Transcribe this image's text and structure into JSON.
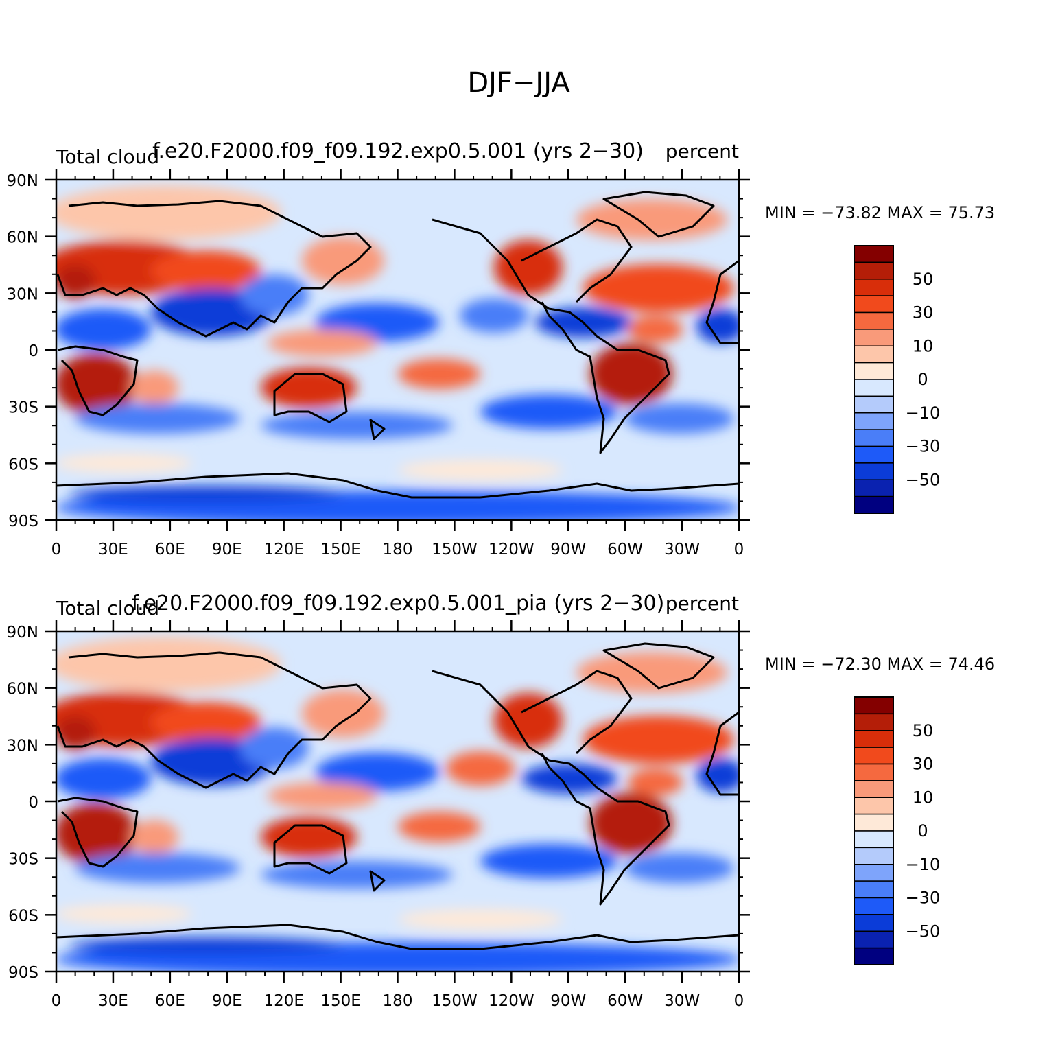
{
  "page_title": "DJF−JJA",
  "panels": [
    {
      "case_title": "f.e20.F2000.f09_f09.192.exp0.5.001 (yrs 2−30)",
      "variable_label": "Total cloud",
      "units_label": "percent",
      "min_max_text": "MIN = −73.82 MAX =  75.73"
    },
    {
      "case_title": "f.e20.F2000.f09_f09.192.exp0.5.001_pia (yrs 2−30)",
      "variable_label": "Total cloud",
      "units_label": "percent",
      "min_max_text": "MIN = −72.30 MAX =  74.46"
    }
  ],
  "axes": {
    "lat_ticks": [
      "90N",
      "60N",
      "30N",
      "0",
      "30S",
      "60S",
      "90S"
    ],
    "lon_ticks": [
      "0",
      "30E",
      "60E",
      "90E",
      "120E",
      "150E",
      "180",
      "150W",
      "120W",
      "90W",
      "60W",
      "30W",
      "0"
    ]
  },
  "colorbar": {
    "colors": [
      "#000080",
      "#0a22b0",
      "#0b3cd8",
      "#1e5af8",
      "#4a7ef8",
      "#7ea4fb",
      "#b4cbfb",
      "#d8e8fe",
      "#fee9d8",
      "#fdc6aa",
      "#f99a7a",
      "#f5693f",
      "#f14a1c",
      "#d82e0a",
      "#b41e08",
      "#840000"
    ],
    "labels": [
      "−50",
      "−30",
      "−10",
      "0",
      "10",
      "30",
      "50"
    ]
  }
}
